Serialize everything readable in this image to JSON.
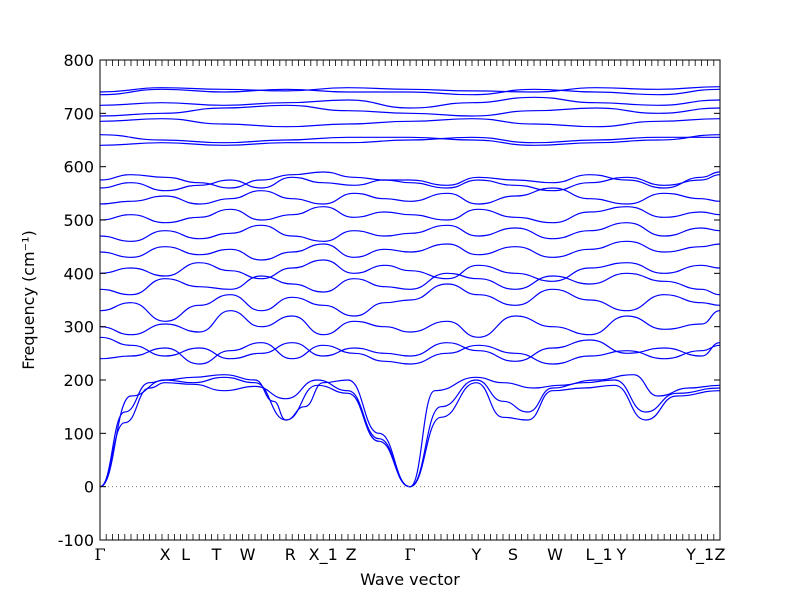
{
  "chart_data": {
    "type": "line",
    "xlabel": "Wave vector",
    "ylabel": "Frequency (cm⁻¹)",
    "ylim": [
      -100,
      800
    ],
    "yticks": [
      -100,
      0,
      100,
      200,
      300,
      400,
      500,
      600,
      700,
      800
    ],
    "grid": false,
    "zero_line": {
      "y": 0,
      "style": "dotted",
      "color": "#808080"
    },
    "colors": {
      "bands": "#0000ff",
      "axes": "#000000"
    },
    "high_symmetry_points": [
      {
        "label": "Γ",
        "x": 0.0
      },
      {
        "label": "X",
        "x": 1.05
      },
      {
        "label": "L",
        "x": 1.38
      },
      {
        "label": "T",
        "x": 1.88
      },
      {
        "label": "W",
        "x": 2.38
      },
      {
        "label": "R",
        "x": 3.07
      },
      {
        "label": "X_1",
        "x": 3.6
      },
      {
        "label": "Z",
        "x": 4.05
      },
      {
        "label": "Γ",
        "x": 5.0
      },
      {
        "label": "Y",
        "x": 6.07
      },
      {
        "label": "S",
        "x": 6.66
      },
      {
        "label": "W",
        "x": 7.34
      },
      {
        "label": "L_1",
        "x": 8.05
      },
      {
        "label": "Y",
        "x": 8.41
      },
      {
        "label": "Y_1",
        "x": 9.68
      },
      {
        "label": "Z",
        "x": 10.0
      }
    ],
    "xlim": [
      0,
      10
    ],
    "series": [
      {
        "x": [
          0,
          0.4,
          0.8,
          1.05,
          1.5,
          2.0,
          2.5,
          3.0,
          3.5,
          4.0,
          4.5,
          5.0
        ],
        "values": [
          0,
          120,
          185,
          195,
          192,
          180,
          188,
          165,
          200,
          180,
          90,
          0
        ]
      },
      {
        "x": [
          0,
          0.4,
          0.8,
          1.05,
          1.5,
          2.0,
          2.5,
          3.0,
          3.5,
          4.0,
          4.5,
          5.0
        ],
        "values": [
          0,
          140,
          195,
          200,
          195,
          205,
          195,
          125,
          190,
          175,
          85,
          0
        ]
      },
      {
        "x": [
          0,
          0.5,
          1.05,
          1.5,
          2.0,
          2.5,
          2.8,
          3.0,
          3.3,
          3.6,
          4.0,
          4.5,
          5.0
        ],
        "values": [
          0,
          170,
          200,
          205,
          210,
          200,
          160,
          125,
          150,
          195,
          200,
          100,
          0
        ]
      },
      {
        "x": [
          5.0,
          5.5,
          6.07,
          6.5,
          6.9,
          7.3,
          7.8,
          8.3,
          8.8,
          9.3,
          10.0
        ],
        "values": [
          0,
          130,
          195,
          130,
          125,
          180,
          185,
          190,
          125,
          170,
          180
        ]
      },
      {
        "x": [
          5.0,
          5.5,
          6.07,
          6.5,
          6.9,
          7.3,
          7.8,
          8.3,
          8.8,
          9.3,
          10.0
        ],
        "values": [
          0,
          150,
          200,
          160,
          140,
          185,
          195,
          200,
          140,
          175,
          185
        ]
      },
      {
        "x": [
          5.0,
          5.4,
          6.07,
          6.5,
          7.0,
          7.4,
          8.0,
          8.6,
          9.0,
          9.5,
          10.0
        ],
        "values": [
          0,
          180,
          205,
          195,
          185,
          190,
          200,
          210,
          170,
          185,
          190
        ]
      },
      {
        "x": [
          0,
          0.5,
          1.05,
          1.6,
          2.1,
          2.6,
          3.1,
          3.6,
          4.1,
          4.6,
          5.0,
          5.6,
          6.1,
          6.7,
          7.3,
          7.9,
          8.5,
          9.1,
          9.7,
          10.0
        ],
        "values": [
          240,
          245,
          260,
          230,
          255,
          270,
          240,
          265,
          250,
          235,
          230,
          250,
          265,
          250,
          230,
          245,
          255,
          240,
          255,
          265
        ]
      },
      {
        "x": [
          0,
          0.5,
          1.05,
          1.6,
          2.1,
          2.6,
          3.1,
          3.6,
          4.1,
          4.6,
          5.0,
          5.6,
          6.1,
          6.7,
          7.3,
          7.9,
          8.5,
          9.1,
          9.7,
          10.0
        ],
        "values": [
          280,
          265,
          245,
          260,
          240,
          250,
          270,
          245,
          260,
          250,
          245,
          270,
          255,
          235,
          260,
          275,
          250,
          260,
          245,
          270
        ]
      },
      {
        "x": [
          0,
          0.5,
          1.05,
          1.6,
          2.1,
          2.6,
          3.1,
          3.6,
          4.1,
          4.6,
          5.0,
          5.6,
          6.1,
          6.7,
          7.3,
          7.9,
          8.5,
          9.1,
          9.7,
          10.0
        ],
        "values": [
          300,
          285,
          305,
          290,
          330,
          300,
          320,
          285,
          310,
          300,
          290,
          310,
          280,
          320,
          300,
          285,
          320,
          295,
          305,
          330
        ]
      },
      {
        "x": [
          0,
          0.5,
          1.05,
          1.6,
          2.1,
          2.6,
          3.1,
          3.6,
          4.1,
          4.6,
          5.0,
          5.6,
          6.1,
          6.7,
          7.3,
          7.9,
          8.5,
          9.1,
          9.7,
          10.0
        ],
        "values": [
          330,
          345,
          310,
          340,
          360,
          330,
          355,
          340,
          320,
          345,
          350,
          380,
          360,
          340,
          370,
          350,
          330,
          360,
          345,
          340
        ]
      },
      {
        "x": [
          0,
          0.5,
          1.05,
          1.6,
          2.1,
          2.6,
          3.1,
          3.6,
          4.1,
          4.6,
          5.0,
          5.6,
          6.1,
          6.7,
          7.3,
          7.9,
          8.5,
          9.1,
          9.7,
          10.0
        ],
        "values": [
          370,
          360,
          390,
          375,
          370,
          395,
          380,
          365,
          390,
          375,
          370,
          400,
          390,
          370,
          395,
          380,
          400,
          385,
          370,
          360
        ]
      },
      {
        "x": [
          0,
          0.5,
          1.05,
          1.6,
          2.1,
          2.6,
          3.1,
          3.6,
          4.1,
          4.6,
          5.0,
          5.6,
          6.1,
          6.7,
          7.3,
          7.9,
          8.5,
          9.1,
          9.7,
          10.0
        ],
        "values": [
          400,
          410,
          395,
          420,
          405,
          390,
          410,
          425,
          400,
          415,
          405,
          390,
          415,
          400,
          385,
          410,
          420,
          400,
          415,
          410
        ]
      },
      {
        "x": [
          0,
          0.5,
          1.05,
          1.6,
          2.1,
          2.6,
          3.1,
          3.6,
          4.1,
          4.6,
          5.0,
          5.6,
          6.1,
          6.7,
          7.3,
          7.9,
          8.5,
          9.1,
          9.7,
          10.0
        ],
        "values": [
          440,
          430,
          450,
          435,
          445,
          425,
          440,
          455,
          430,
          445,
          440,
          455,
          435,
          450,
          430,
          445,
          460,
          440,
          450,
          455
        ]
      },
      {
        "x": [
          0,
          0.5,
          1.05,
          1.6,
          2.1,
          2.6,
          3.1,
          3.6,
          4.1,
          4.6,
          5.0,
          5.6,
          6.1,
          6.7,
          7.3,
          7.9,
          8.5,
          9.1,
          9.7,
          10.0
        ],
        "values": [
          470,
          460,
          480,
          465,
          475,
          490,
          470,
          460,
          480,
          470,
          475,
          490,
          470,
          485,
          465,
          480,
          495,
          470,
          485,
          480
        ]
      },
      {
        "x": [
          0,
          0.5,
          1.05,
          1.6,
          2.1,
          2.6,
          3.1,
          3.6,
          4.1,
          4.6,
          5.0,
          5.6,
          6.1,
          6.7,
          7.3,
          7.9,
          8.5,
          9.1,
          9.7,
          10.0
        ],
        "values": [
          500,
          510,
          495,
          505,
          520,
          500,
          510,
          525,
          505,
          515,
          510,
          500,
          520,
          505,
          495,
          515,
          525,
          505,
          515,
          510
        ]
      },
      {
        "x": [
          0,
          0.5,
          1.05,
          1.6,
          2.1,
          2.6,
          3.1,
          3.6,
          4.1,
          4.6,
          5.0,
          5.6,
          6.1,
          6.7,
          7.3,
          7.9,
          8.5,
          9.1,
          9.7,
          10.0
        ],
        "values": [
          530,
          535,
          545,
          530,
          540,
          555,
          540,
          530,
          550,
          540,
          535,
          550,
          530,
          545,
          560,
          540,
          530,
          550,
          540,
          535
        ]
      },
      {
        "x": [
          0,
          0.5,
          1.05,
          1.6,
          2.1,
          2.6,
          3.1,
          3.6,
          4.1,
          4.6,
          5.0,
          5.6,
          6.1,
          6.7,
          7.3,
          7.9,
          8.5,
          9.1,
          9.7,
          10.0
        ],
        "values": [
          560,
          570,
          555,
          565,
          575,
          560,
          580,
          570,
          565,
          575,
          570,
          560,
          575,
          565,
          555,
          570,
          580,
          565,
          575,
          585
        ]
      },
      {
        "x": [
          0,
          0.5,
          1.05,
          1.6,
          2.1,
          2.6,
          3.1,
          3.6,
          4.1,
          4.6,
          5.0,
          5.6,
          6.1,
          6.7,
          7.3,
          7.9,
          8.5,
          9.1,
          9.7,
          10.0
        ],
        "values": [
          575,
          585,
          580,
          570,
          560,
          575,
          585,
          590,
          580,
          575,
          575,
          565,
          580,
          575,
          570,
          585,
          575,
          560,
          580,
          590
        ]
      },
      {
        "x": [
          0,
          1.0,
          2.0,
          3.0,
          4.0,
          5.0,
          6.0,
          7.0,
          8.0,
          9.0,
          10.0
        ],
        "values": [
          640,
          645,
          640,
          645,
          645,
          650,
          655,
          645,
          650,
          655,
          655
        ]
      },
      {
        "x": [
          0,
          1.0,
          2.0,
          3.0,
          4.0,
          5.0,
          6.0,
          7.0,
          8.0,
          9.0,
          10.0
        ],
        "values": [
          660,
          650,
          645,
          650,
          655,
          655,
          650,
          640,
          645,
          650,
          660
        ]
      },
      {
        "x": [
          0,
          1.0,
          2.0,
          3.0,
          4.0,
          5.0,
          6.0,
          7.0,
          8.0,
          9.0,
          10.0
        ],
        "values": [
          685,
          690,
          680,
          675,
          680,
          685,
          690,
          680,
          675,
          685,
          690
        ]
      },
      {
        "x": [
          0,
          1.0,
          2.0,
          3.0,
          4.0,
          5.0,
          6.0,
          7.0,
          8.0,
          9.0,
          10.0
        ],
        "values": [
          695,
          700,
          710,
          715,
          705,
          700,
          695,
          705,
          710,
          700,
          710
        ]
      },
      {
        "x": [
          0,
          1.0,
          2.0,
          3.0,
          4.0,
          5.0,
          6.0,
          7.0,
          8.0,
          9.0,
          10.0
        ],
        "values": [
          715,
          720,
          715,
          720,
          725,
          710,
          720,
          730,
          720,
          715,
          725
        ]
      },
      {
        "x": [
          0,
          1.0,
          2.0,
          3.0,
          4.0,
          5.0,
          6.0,
          7.0,
          8.0,
          9.0,
          10.0
        ],
        "values": [
          735,
          745,
          740,
          745,
          740,
          740,
          735,
          745,
          740,
          735,
          745
        ]
      },
      {
        "x": [
          0,
          1.0,
          2.0,
          3.0,
          4.0,
          5.0,
          6.0,
          7.0,
          8.0,
          9.0,
          10.0
        ],
        "values": [
          740,
          748,
          745,
          742,
          748,
          745,
          742,
          740,
          748,
          745,
          750
        ]
      }
    ]
  }
}
